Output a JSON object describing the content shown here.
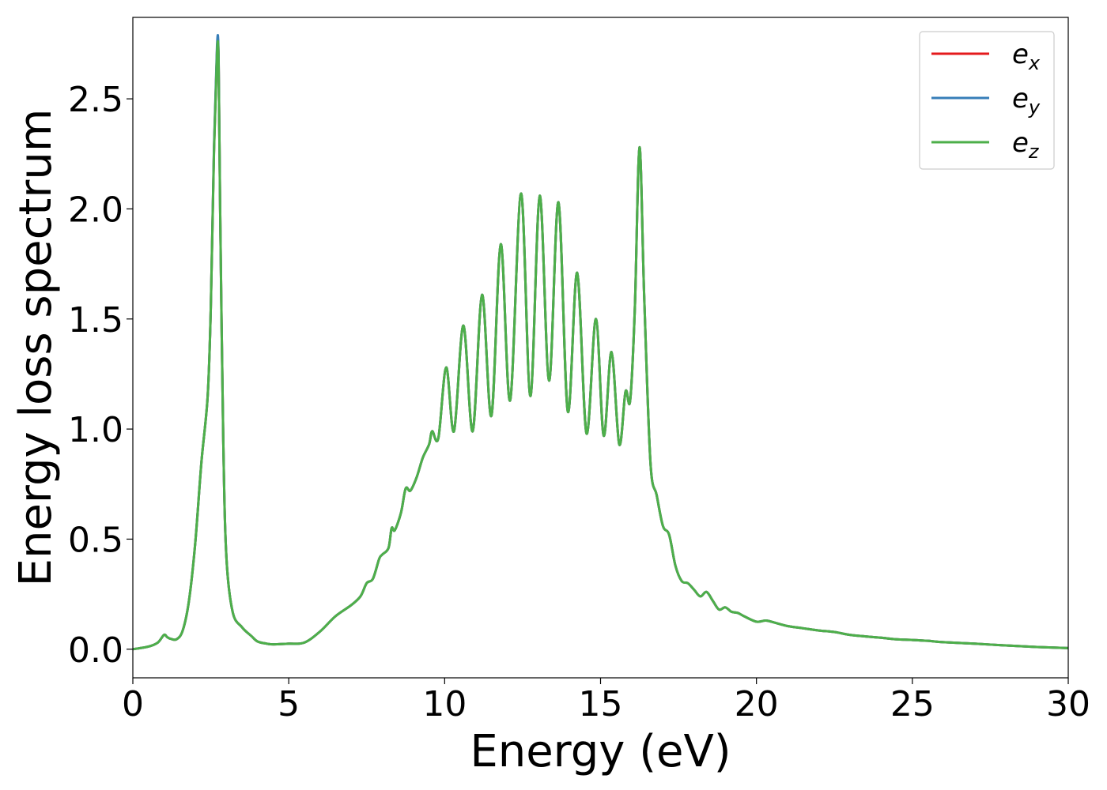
{
  "chart_data": {
    "type": "line",
    "title": "",
    "xlabel": "Energy (eV)",
    "ylabel": "Energy loss spectrum",
    "xlim": [
      0,
      30
    ],
    "ylim": [
      -0.13,
      2.87
    ],
    "x_ticks": [
      0,
      5,
      10,
      15,
      20,
      25,
      30
    ],
    "x_tick_labels": [
      "0",
      "5",
      "10",
      "15",
      "20",
      "25",
      "30"
    ],
    "y_ticks": [
      0.0,
      0.5,
      1.0,
      1.5,
      2.0,
      2.5
    ],
    "y_tick_labels": [
      "0.0",
      "0.5",
      "1.0",
      "1.5",
      "2.0",
      "2.5"
    ],
    "grid": false,
    "legend_position": "top-right",
    "legend": [
      {
        "base": "e",
        "sub": "x",
        "color": "#e41a1c"
      },
      {
        "base": "e",
        "sub": "y",
        "color": "#377eb8"
      },
      {
        "base": "e",
        "sub": "z",
        "color": "#4daf4a"
      }
    ],
    "x": [
      0,
      0.5,
      0.8,
      1.0,
      1.1,
      1.2,
      1.4,
      1.6,
      1.8,
      2.0,
      2.2,
      2.4,
      2.5,
      2.6,
      2.7,
      2.75,
      2.8,
      2.9,
      3.0,
      3.2,
      3.5,
      3.8,
      4.0,
      4.3,
      4.5,
      5.0,
      5.5,
      6.0,
      6.5,
      7.0,
      7.3,
      7.5,
      7.7,
      7.9,
      8.0,
      8.2,
      8.3,
      8.4,
      8.6,
      8.75,
      8.9,
      9.1,
      9.3,
      9.5,
      9.6,
      9.8,
      10.05,
      10.3,
      10.6,
      10.9,
      11.2,
      11.5,
      11.8,
      12.1,
      12.45,
      12.75,
      13.05,
      13.35,
      13.65,
      13.95,
      14.25,
      14.55,
      14.85,
      15.1,
      15.35,
      15.6,
      15.8,
      15.95,
      16.1,
      16.25,
      16.4,
      16.6,
      16.8,
      17.0,
      17.2,
      17.4,
      17.6,
      17.8,
      18.0,
      18.2,
      18.4,
      18.6,
      18.8,
      19.0,
      19.2,
      19.4,
      19.6,
      20.0,
      20.3,
      20.6,
      21.0,
      21.5,
      22.0,
      22.5,
      23.0,
      23.5,
      24.0,
      24.5,
      25.0,
      25.5,
      26.0,
      27.0,
      28.0,
      29.0,
      30.0
    ],
    "series": [
      {
        "name": "e_x",
        "color": "#e41a1c",
        "y": [
          0.0,
          0.012,
          0.03,
          0.065,
          0.055,
          0.048,
          0.045,
          0.085,
          0.22,
          0.48,
          0.85,
          1.15,
          1.55,
          2.25,
          2.72,
          2.68,
          2.0,
          0.95,
          0.42,
          0.17,
          0.1,
          0.06,
          0.035,
          0.025,
          0.022,
          0.025,
          0.03,
          0.08,
          0.15,
          0.2,
          0.24,
          0.3,
          0.32,
          0.41,
          0.43,
          0.46,
          0.55,
          0.54,
          0.62,
          0.73,
          0.72,
          0.78,
          0.87,
          0.93,
          0.99,
          0.96,
          1.28,
          0.99,
          1.47,
          0.99,
          1.61,
          1.06,
          1.84,
          1.13,
          2.07,
          1.15,
          2.06,
          1.22,
          2.03,
          1.08,
          1.71,
          0.98,
          1.5,
          0.97,
          1.35,
          0.93,
          1.17,
          1.13,
          1.55,
          2.28,
          1.6,
          0.85,
          0.7,
          0.56,
          0.52,
          0.38,
          0.31,
          0.3,
          0.27,
          0.24,
          0.26,
          0.22,
          0.18,
          0.19,
          0.17,
          0.165,
          0.15,
          0.125,
          0.13,
          0.12,
          0.105,
          0.095,
          0.085,
          0.078,
          0.065,
          0.058,
          0.052,
          0.045,
          0.042,
          0.038,
          0.032,
          0.025,
          0.017,
          0.01,
          0.005
        ]
      },
      {
        "name": "e_y",
        "color": "#377eb8",
        "y": [
          0.0,
          0.012,
          0.03,
          0.065,
          0.055,
          0.048,
          0.045,
          0.085,
          0.22,
          0.48,
          0.85,
          1.15,
          1.55,
          2.26,
          2.74,
          2.69,
          2.0,
          0.95,
          0.42,
          0.17,
          0.1,
          0.06,
          0.035,
          0.025,
          0.022,
          0.025,
          0.03,
          0.08,
          0.15,
          0.2,
          0.24,
          0.3,
          0.32,
          0.41,
          0.43,
          0.46,
          0.55,
          0.54,
          0.62,
          0.73,
          0.72,
          0.78,
          0.87,
          0.93,
          0.99,
          0.96,
          1.28,
          0.99,
          1.47,
          0.99,
          1.61,
          1.06,
          1.84,
          1.13,
          2.07,
          1.15,
          2.06,
          1.22,
          2.03,
          1.08,
          1.71,
          0.98,
          1.5,
          0.97,
          1.35,
          0.93,
          1.17,
          1.13,
          1.55,
          2.28,
          1.6,
          0.85,
          0.7,
          0.56,
          0.52,
          0.38,
          0.31,
          0.3,
          0.27,
          0.24,
          0.26,
          0.22,
          0.18,
          0.19,
          0.17,
          0.165,
          0.15,
          0.125,
          0.13,
          0.12,
          0.105,
          0.095,
          0.085,
          0.078,
          0.065,
          0.058,
          0.052,
          0.045,
          0.042,
          0.038,
          0.032,
          0.025,
          0.017,
          0.01,
          0.005
        ]
      },
      {
        "name": "e_z",
        "color": "#4daf4a",
        "y": [
          0.0,
          0.012,
          0.03,
          0.065,
          0.055,
          0.048,
          0.045,
          0.085,
          0.22,
          0.48,
          0.85,
          1.15,
          1.55,
          2.24,
          2.71,
          2.67,
          2.0,
          0.95,
          0.42,
          0.17,
          0.1,
          0.06,
          0.035,
          0.025,
          0.022,
          0.025,
          0.03,
          0.08,
          0.15,
          0.2,
          0.24,
          0.3,
          0.32,
          0.41,
          0.43,
          0.46,
          0.55,
          0.54,
          0.62,
          0.73,
          0.72,
          0.78,
          0.87,
          0.93,
          0.99,
          0.96,
          1.28,
          0.99,
          1.47,
          0.99,
          1.61,
          1.06,
          1.84,
          1.13,
          2.07,
          1.15,
          2.06,
          1.22,
          2.03,
          1.08,
          1.71,
          0.98,
          1.5,
          0.97,
          1.35,
          0.93,
          1.17,
          1.13,
          1.55,
          2.28,
          1.6,
          0.85,
          0.7,
          0.56,
          0.52,
          0.38,
          0.31,
          0.3,
          0.27,
          0.24,
          0.26,
          0.22,
          0.18,
          0.19,
          0.17,
          0.165,
          0.15,
          0.125,
          0.13,
          0.12,
          0.105,
          0.095,
          0.085,
          0.078,
          0.065,
          0.058,
          0.052,
          0.045,
          0.042,
          0.038,
          0.032,
          0.025,
          0.017,
          0.01,
          0.005
        ]
      }
    ]
  }
}
